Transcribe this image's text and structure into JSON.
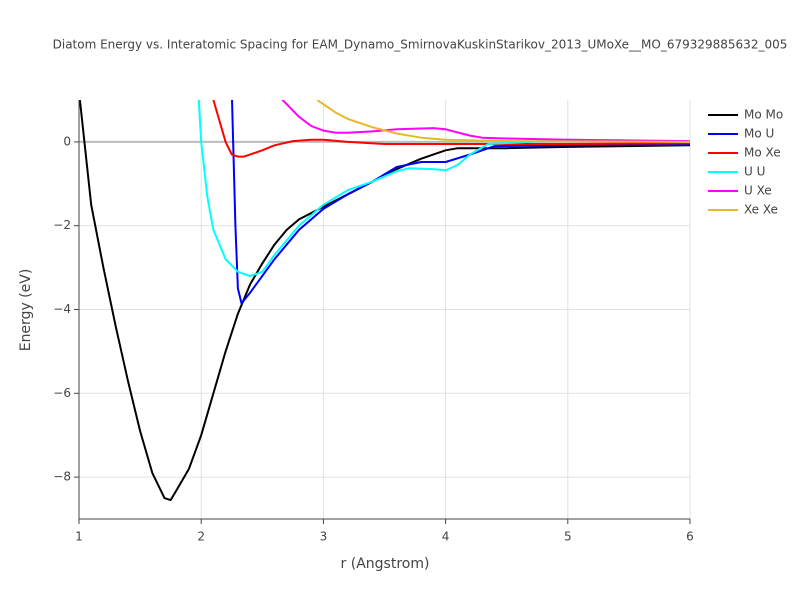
{
  "chart_data": {
    "type": "line",
    "title": "Diatom Energy vs. Interatomic Spacing for EAM_Dynamo_SmirnovaKuskinStarikov_2013_UMoXe__MO_679329885632_005",
    "x_label": "r (Angstrom)",
    "y_label": "Energy (eV)",
    "xlim": [
      1,
      6
    ],
    "ylim": [
      -9,
      1
    ],
    "xticks": [
      1,
      2,
      3,
      4,
      5,
      6
    ],
    "yticks": [
      {
        "value": -8,
        "label": "−8"
      },
      {
        "value": -6,
        "label": "−6"
      },
      {
        "value": -4,
        "label": "−4"
      },
      {
        "value": -2,
        "label": "−2"
      },
      0
    ],
    "grid": true,
    "series": [
      {
        "name": "Mo Mo",
        "color": "#000000",
        "x": [
          1.0,
          1.1,
          1.2,
          1.3,
          1.4,
          1.5,
          1.6,
          1.7,
          1.75,
          1.8,
          1.9,
          2.0,
          2.1,
          2.2,
          2.3,
          2.4,
          2.5,
          2.6,
          2.7,
          2.8,
          3.0,
          3.2,
          3.4,
          3.6,
          3.8,
          4.0,
          4.1,
          4.5,
          5.0,
          6.0
        ],
        "values": [
          1.2,
          -1.5,
          -3.0,
          -4.4,
          -5.7,
          -6.9,
          -7.9,
          -8.5,
          -8.55,
          -8.3,
          -7.8,
          -7.0,
          -6.0,
          -5.0,
          -4.1,
          -3.4,
          -2.9,
          -2.45,
          -2.1,
          -1.85,
          -1.55,
          -1.25,
          -0.95,
          -0.65,
          -0.4,
          -0.2,
          -0.15,
          -0.15,
          -0.12,
          -0.08
        ]
      },
      {
        "name": "Mo U",
        "color": "#0000ff",
        "x": [
          2.25,
          2.28,
          2.3,
          2.33,
          2.4,
          2.6,
          2.8,
          3.0,
          3.2,
          3.4,
          3.6,
          3.8,
          4.0,
          4.2,
          4.4,
          5.0,
          6.0
        ],
        "values": [
          1.2,
          -2.0,
          -3.5,
          -3.85,
          -3.6,
          -2.8,
          -2.1,
          -1.6,
          -1.25,
          -0.95,
          -0.6,
          -0.48,
          -0.48,
          -0.3,
          -0.1,
          -0.08,
          -0.06
        ]
      },
      {
        "name": "Mo Xe",
        "color": "#ff0000",
        "x": [
          2.1,
          2.15,
          2.2,
          2.25,
          2.3,
          2.35,
          2.5,
          2.6,
          2.75,
          2.9,
          3.0,
          3.2,
          3.5,
          4.0,
          5.0,
          6.0
        ],
        "values": [
          1.0,
          0.5,
          0.0,
          -0.3,
          -0.35,
          -0.35,
          -0.2,
          -0.08,
          0.02,
          0.05,
          0.05,
          0.0,
          -0.05,
          -0.05,
          -0.05,
          -0.03
        ]
      },
      {
        "name": "U U",
        "color": "#00ffff",
        "x": [
          1.98,
          2.0,
          2.05,
          2.1,
          2.2,
          2.3,
          2.4,
          2.5,
          2.6,
          2.8,
          3.0,
          3.2,
          3.4,
          3.6,
          3.7,
          3.9,
          4.0,
          4.1,
          4.2,
          4.35,
          5.0,
          6.0
        ],
        "values": [
          1.0,
          0.0,
          -1.3,
          -2.1,
          -2.8,
          -3.1,
          -3.2,
          -3.1,
          -2.7,
          -2.0,
          -1.5,
          -1.15,
          -0.95,
          -0.7,
          -0.63,
          -0.65,
          -0.68,
          -0.55,
          -0.3,
          -0.05,
          0.05,
          0.0
        ]
      },
      {
        "name": "U Xe",
        "color": "#ff00ff",
        "x": [
          2.6,
          2.7,
          2.8,
          2.9,
          3.0,
          3.1,
          3.2,
          3.4,
          3.6,
          3.9,
          4.0,
          4.2,
          4.3,
          4.5,
          5.0,
          6.0
        ],
        "values": [
          1.2,
          0.9,
          0.6,
          0.38,
          0.27,
          0.22,
          0.22,
          0.25,
          0.3,
          0.33,
          0.3,
          0.15,
          0.1,
          0.08,
          0.05,
          0.02
        ]
      },
      {
        "name": "Xe Xe",
        "color": "#e8b72a",
        "x": [
          2.95,
          3.1,
          3.2,
          3.4,
          3.6,
          3.8,
          4.0,
          4.5,
          6.0
        ],
        "values": [
          1.0,
          0.7,
          0.55,
          0.35,
          0.2,
          0.1,
          0.05,
          0.02,
          0.0
        ]
      }
    ]
  }
}
